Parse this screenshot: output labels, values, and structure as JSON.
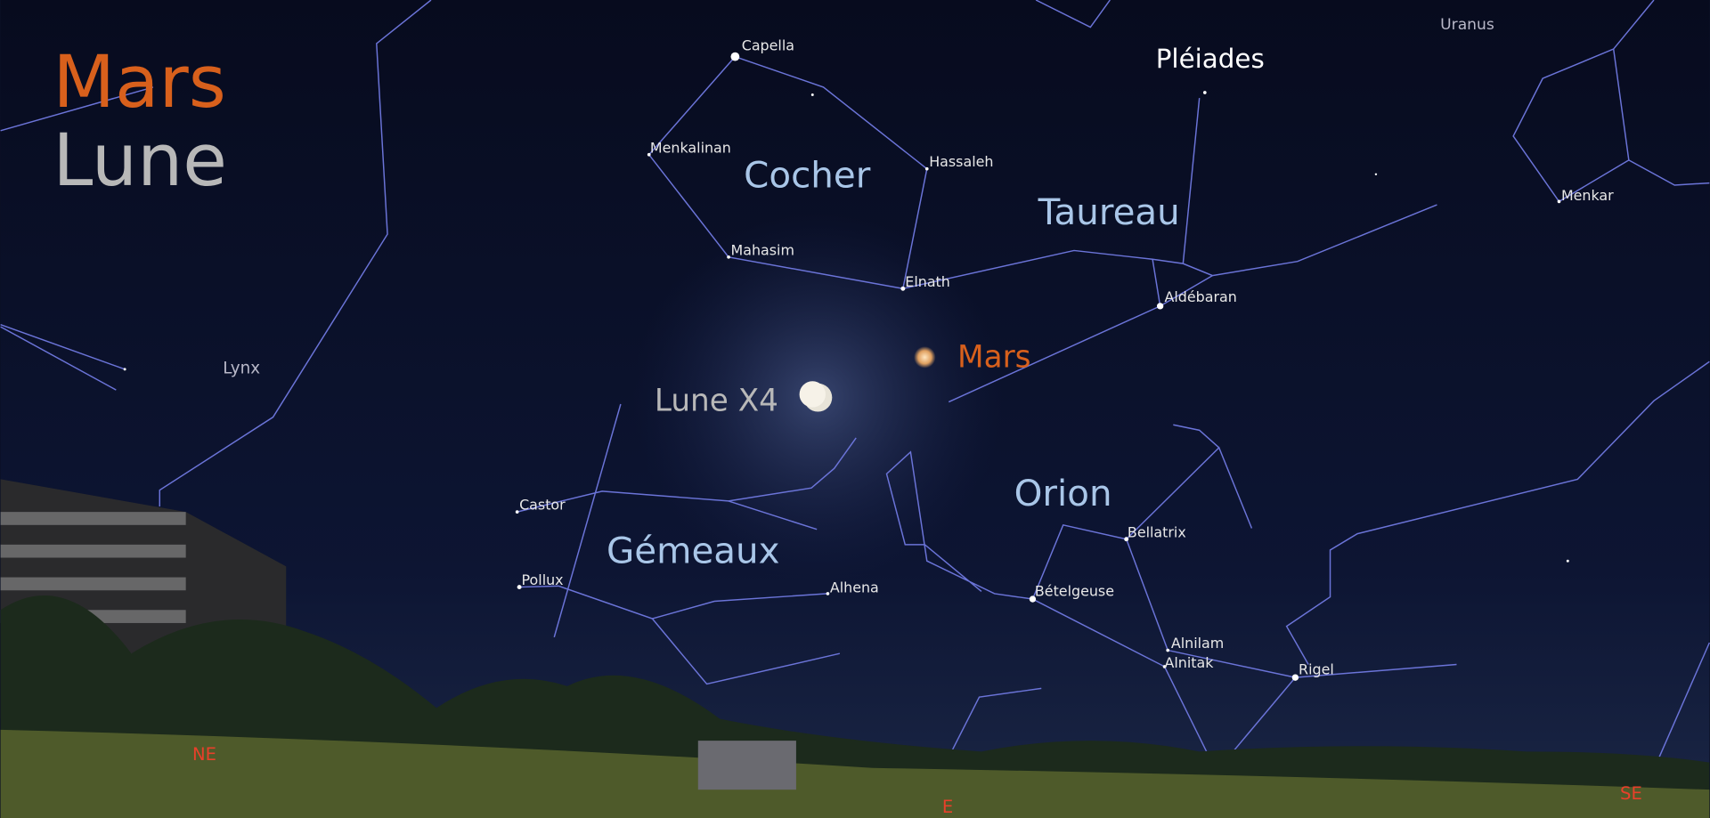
{
  "legend": [
    "Mars",
    "Lune"
  ],
  "constellations": [
    "Cocher",
    "Taureau",
    "Orion",
    "Gémeaux",
    "Lynx"
  ],
  "stars": [
    "Capella",
    "Menkalinan",
    "Hassaleh",
    "Mahasim",
    "Elnath",
    "Aldébaran",
    "Menkar",
    "Castor",
    "Pollux",
    "Alhena",
    "Bellatrix",
    "Bételgeuse",
    "Alnilam",
    "Alnitak",
    "Rigel"
  ],
  "objects": [
    "Pléiades",
    "Mars",
    "Lune X4",
    "Uranus"
  ],
  "directions": [
    "NE",
    "E",
    "SE"
  ]
}
